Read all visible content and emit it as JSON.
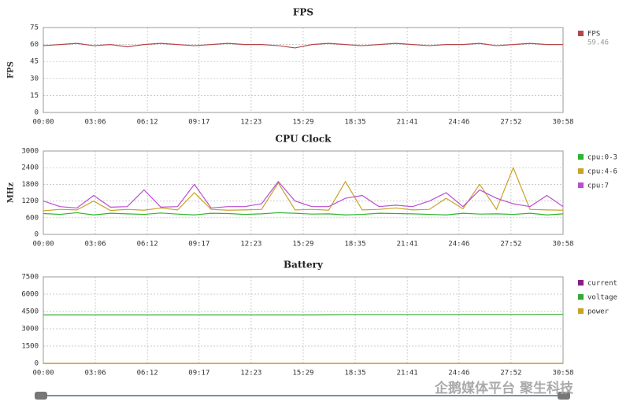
{
  "chart_data": [
    {
      "type": "line",
      "title": "FPS",
      "y_label": "FPS",
      "x": [
        0,
        60,
        120,
        180,
        240,
        300,
        360,
        420,
        480,
        540,
        600,
        660,
        720,
        780,
        840,
        900,
        960,
        1020,
        1080,
        1140,
        1200,
        1260,
        1320,
        1380,
        1440,
        1500,
        1560,
        1620,
        1680,
        1740,
        1800,
        1858
      ],
      "xlim": [
        0,
        1858
      ],
      "xticks": [
        {
          "value": 0,
          "label": "00:00"
        },
        {
          "value": 186,
          "label": "03:06"
        },
        {
          "value": 372,
          "label": "06:12"
        },
        {
          "value": 557,
          "label": "09:17"
        },
        {
          "value": 743,
          "label": "12:23"
        },
        {
          "value": 929,
          "label": "15:29"
        },
        {
          "value": 1115,
          "label": "18:35"
        },
        {
          "value": 1301,
          "label": "21:41"
        },
        {
          "value": 1486,
          "label": "24:46"
        },
        {
          "value": 1672,
          "label": "27:52"
        },
        {
          "value": 1858,
          "label": "30:58"
        }
      ],
      "ylim": [
        0,
        75
      ],
      "yticks": [
        0,
        15,
        30,
        45,
        60,
        75
      ],
      "grid": true,
      "series": [
        {
          "name": "FPS",
          "color": "#b5474b",
          "summary": "59.46",
          "values": [
            59,
            60,
            61,
            59,
            60,
            58,
            60,
            61,
            60,
            59,
            60,
            61,
            60,
            60,
            59,
            57,
            60,
            61,
            60,
            59,
            60,
            61,
            60,
            59,
            60,
            60,
            61,
            59,
            60,
            61,
            60,
            60
          ]
        }
      ]
    },
    {
      "type": "line",
      "title": "CPU Clock",
      "y_label": "MHz",
      "x": [
        0,
        60,
        120,
        180,
        240,
        300,
        360,
        420,
        480,
        540,
        600,
        660,
        720,
        780,
        840,
        900,
        960,
        1020,
        1080,
        1140,
        1200,
        1260,
        1320,
        1380,
        1440,
        1500,
        1560,
        1620,
        1680,
        1740,
        1800,
        1858
      ],
      "xlim": [
        0,
        1858
      ],
      "xticks": [
        {
          "value": 0,
          "label": "00:00"
        },
        {
          "value": 186,
          "label": "03:06"
        },
        {
          "value": 372,
          "label": "06:12"
        },
        {
          "value": 557,
          "label": "09:17"
        },
        {
          "value": 743,
          "label": "12:23"
        },
        {
          "value": 929,
          "label": "15:29"
        },
        {
          "value": 1115,
          "label": "18:35"
        },
        {
          "value": 1301,
          "label": "21:41"
        },
        {
          "value": 1486,
          "label": "24:46"
        },
        {
          "value": 1672,
          "label": "27:52"
        },
        {
          "value": 1858,
          "label": "30:58"
        }
      ],
      "ylim": [
        0,
        3000
      ],
      "yticks": [
        0,
        600,
        1200,
        1800,
        2400,
        3000
      ],
      "grid": true,
      "series": [
        {
          "name": "cpu:0-3",
          "color": "#2db52d",
          "values": [
            750,
            720,
            780,
            700,
            760,
            740,
            720,
            770,
            730,
            700,
            760,
            750,
            720,
            740,
            780,
            760,
            730,
            740,
            700,
            720,
            760,
            750,
            740,
            720,
            700,
            760,
            730,
            740,
            720,
            760,
            700,
            740
          ]
        },
        {
          "name": "cpu:4-6",
          "color": "#c9a227",
          "values": [
            850,
            900,
            880,
            1200,
            860,
            900,
            870,
            950,
            880,
            1500,
            900,
            870,
            880,
            900,
            1850,
            880,
            900,
            870,
            1900,
            880,
            900,
            950,
            880,
            900,
            1300,
            920,
            1800,
            900,
            2400,
            900,
            880,
            870
          ]
        },
        {
          "name": "cpu:7",
          "color": "#b84fd0",
          "values": [
            1200,
            1000,
            950,
            1400,
            980,
            1000,
            1600,
            980,
            1000,
            1800,
            950,
            1000,
            1000,
            1100,
            1900,
            1200,
            1000,
            1000,
            1300,
            1400,
            1000,
            1050,
            1000,
            1200,
            1500,
            1000,
            1600,
            1300,
            1100,
            1000,
            1400,
            1000
          ]
        }
      ]
    },
    {
      "type": "line",
      "title": "Battery",
      "x": [
        0,
        60,
        120,
        180,
        240,
        300,
        360,
        420,
        480,
        540,
        600,
        660,
        720,
        780,
        840,
        900,
        960,
        1020,
        1080,
        1140,
        1200,
        1260,
        1320,
        1380,
        1440,
        1500,
        1560,
        1620,
        1680,
        1740,
        1800,
        1858
      ],
      "xlim": [
        0,
        1858
      ],
      "xticks": [
        {
          "value": 0,
          "label": "00:00"
        },
        {
          "value": 186,
          "label": "03:06"
        },
        {
          "value": 372,
          "label": "06:12"
        },
        {
          "value": 557,
          "label": "09:17"
        },
        {
          "value": 743,
          "label": "12:23"
        },
        {
          "value": 929,
          "label": "15:29"
        },
        {
          "value": 1115,
          "label": "18:35"
        },
        {
          "value": 1301,
          "label": "21:41"
        },
        {
          "value": 1486,
          "label": "24:46"
        },
        {
          "value": 1672,
          "label": "27:52"
        },
        {
          "value": 1858,
          "label": "30:58"
        }
      ],
      "ylim": [
        0,
        7500
      ],
      "yticks": [
        0,
        1500,
        3000,
        4500,
        6000,
        7500
      ],
      "grid": true,
      "series": [
        {
          "name": "current",
          "color": "#8b1a8b",
          "values": [
            0,
            0,
            0,
            0,
            0,
            0,
            0,
            0,
            0,
            0,
            0,
            0,
            0,
            0,
            0,
            0,
            0,
            0,
            0,
            0,
            0,
            0,
            0,
            0,
            0,
            0,
            0,
            0,
            0,
            0,
            0,
            0
          ]
        },
        {
          "name": "voltage",
          "color": "#33aa33",
          "values": [
            4200,
            4200,
            4200,
            4200,
            4200,
            4200,
            4200,
            4200,
            4200,
            4200,
            4200,
            4200,
            4200,
            4200,
            4200,
            4200,
            4200,
            4220,
            4230,
            4230,
            4230,
            4230,
            4230,
            4230,
            4230,
            4240,
            4240,
            4240,
            4240,
            4240,
            4250,
            4250
          ]
        },
        {
          "name": "power",
          "color": "#c9a227",
          "values": [
            0,
            0,
            0,
            0,
            0,
            0,
            0,
            0,
            0,
            0,
            0,
            0,
            0,
            0,
            0,
            0,
            0,
            0,
            0,
            0,
            0,
            0,
            0,
            0,
            0,
            0,
            0,
            0,
            0,
            0,
            0,
            0
          ]
        }
      ]
    }
  ],
  "watermark": "企鹅媒体平台 聚生科技"
}
